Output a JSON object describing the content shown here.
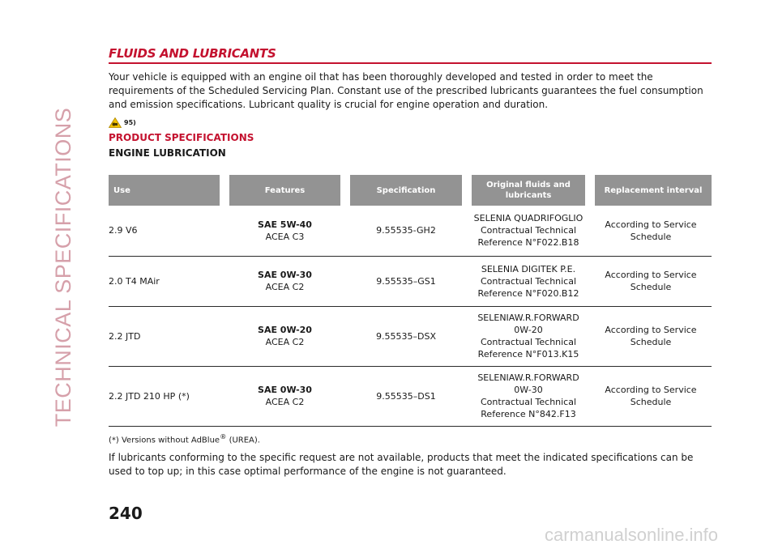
{
  "side_title": "TECHNICAL SPECIFICATIONS",
  "section_title": "FLUIDS AND LUBRICANTS",
  "intro": "Your vehicle is equipped with an engine oil that has been thoroughly developed and tested in order to meet the requirements of the Scheduled Servicing Plan. Constant use of the prescribed lubricants guarantees the fuel consumption and emission specifications. Lubricant quality is crucial for engine operation and duration.",
  "warning_ref": "95)",
  "warning_icon": "warning-triangle-icon",
  "product_specs_title": "PRODUCT SPECIFICATIONS",
  "engine_lub_title": "ENGINE LUBRICATION",
  "table": {
    "headers": [
      "Use",
      "Features",
      "Specification",
      "Original fluids and lubricants",
      "Replacement interval"
    ],
    "rows": [
      {
        "use": "2.9 V6",
        "visc": "SAE 5W-40",
        "acea": "ACEA C3",
        "spec": "9.55535-GH2",
        "fluid": [
          "SELENIA QUADRIFOGLIO",
          "Contractual Technical",
          "Reference N°F022.B18"
        ],
        "interval": [
          "According to Service",
          "Schedule"
        ]
      },
      {
        "use": "2.0 T4 MAir",
        "visc": "SAE 0W-30",
        "acea": "ACEA C2",
        "spec": "9.55535–GS1",
        "fluid": [
          "SELENIA DIGITEK P.E.",
          "Contractual Technical",
          "Reference N°F020.B12"
        ],
        "interval": [
          "According to Service",
          "Schedule"
        ]
      },
      {
        "use": "2.2 JTD",
        "visc": "SAE 0W-20",
        "acea": "ACEA C2",
        "spec": "9.55535–DSX",
        "fluid": [
          "SELENIAW.R.FORWARD",
          "0W-20",
          "Contractual Technical",
          "Reference N°F013.K15"
        ],
        "interval": [
          "According to Service",
          "Schedule"
        ]
      },
      {
        "use": "2.2 JTD 210 HP (*)",
        "visc": "SAE 0W-30",
        "acea": "ACEA C2",
        "spec": "9.55535–DS1",
        "fluid": [
          "SELENIAW.R.FORWARD",
          "0W-30",
          "Contractual Technical",
          "Reference N°842.F13"
        ],
        "interval": [
          "According to Service",
          "Schedule"
        ]
      }
    ]
  },
  "footnote": {
    "pre": "(*) Versions without AdBlue",
    "sup": "®",
    "post": " (UREA)."
  },
  "note": "If lubricants conforming to the specific request are not available, products that meet the indicated specifications can be used to top up; in this case optimal performance of the engine is not guaranteed.",
  "page_number": "240",
  "watermark": "carmanualsonline.info",
  "colors": {
    "accent": "#c4122f",
    "header_bg": "#939393",
    "side": "#d6a0aa"
  }
}
